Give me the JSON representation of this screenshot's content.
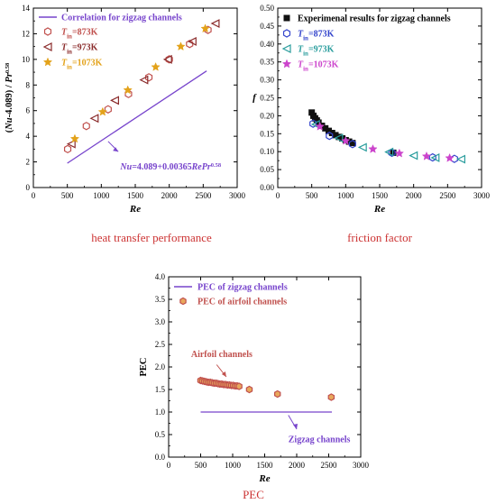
{
  "chart_data": [
    {
      "type": "scatter",
      "caption": "heat transfer performance",
      "xlabel": "Re",
      "ylabel_parts": [
        "(",
        "Nu",
        "-4.089) / ",
        "Pr",
        "0.58"
      ],
      "xlim": [
        0,
        3000
      ],
      "ylim": [
        0,
        14
      ],
      "xticks": [
        0,
        500,
        1000,
        1500,
        2000,
        2500,
        3000
      ],
      "yticks": [
        0,
        2,
        4,
        6,
        8,
        10,
        12,
        14
      ],
      "grid": false,
      "legend_position": "top-left",
      "correlation": {
        "name": "Correlation for zigzag channels",
        "color": "#7744cc",
        "x": [
          500,
          2550
        ],
        "y": [
          1.9,
          9.1
        ],
        "annotation_parts": [
          "Nu",
          "=4.089+0.00365",
          "RePr",
          "0.58"
        ],
        "annotation_color": "#7744cc"
      },
      "series": [
        {
          "name_parts": [
            "T",
            "in",
            "=873K"
          ],
          "marker": "hexagon-open",
          "color": "#c0504d",
          "x": [
            505,
            780,
            1100,
            1400,
            1700,
            2000,
            2300,
            2570
          ],
          "y": [
            3.0,
            4.8,
            6.1,
            7.3,
            8.6,
            10.0,
            11.2,
            12.3
          ]
        },
        {
          "name_parts": [
            "T",
            "in",
            "=973K"
          ],
          "marker": "triangle-left-open",
          "color": "#8b2c2c",
          "x": [
            560,
            900,
            1200,
            1630,
            1980,
            2340,
            2680
          ],
          "y": [
            3.4,
            5.4,
            6.8,
            8.4,
            10.0,
            11.4,
            12.8
          ]
        },
        {
          "name_parts": [
            "T",
            "in",
            "=1073K"
          ],
          "marker": "star",
          "color": "#e3a21a",
          "x": [
            610,
            1020,
            1390,
            1800,
            2170,
            2530
          ],
          "y": [
            3.8,
            5.9,
            7.6,
            9.4,
            11.0,
            12.4
          ]
        }
      ]
    },
    {
      "type": "scatter",
      "caption": "friction factor",
      "xlabel": "Re",
      "ylabel": "f",
      "xlim": [
        0,
        3000
      ],
      "ylim": [
        0,
        0.5
      ],
      "xticks": [
        0,
        500,
        1000,
        1500,
        2000,
        2500,
        3000
      ],
      "yticks": [
        0.0,
        0.05,
        0.1,
        0.15,
        0.2,
        0.25,
        0.3,
        0.35,
        0.4,
        0.45,
        0.5
      ],
      "grid": false,
      "legend_position": "top-right",
      "series": [
        {
          "name": "Experimenal results for zigzag channels",
          "marker": "square-filled",
          "color": "#111111",
          "x": [
            500,
            525,
            550,
            575,
            600,
            650,
            700,
            750,
            800,
            850,
            900,
            950,
            1000,
            1050,
            1100,
            1700
          ],
          "y": [
            0.209,
            0.2,
            0.193,
            0.187,
            0.181,
            0.172,
            0.165,
            0.158,
            0.152,
            0.146,
            0.141,
            0.137,
            0.132,
            0.128,
            0.124,
            0.097
          ]
        },
        {
          "name_parts": [
            "T",
            "in",
            "=873K"
          ],
          "marker": "hexagon-open",
          "color": "#3344cc",
          "x": [
            520,
            760,
            1100,
            1680,
            2280,
            2600
          ],
          "y": [
            0.178,
            0.144,
            0.121,
            0.097,
            0.084,
            0.08
          ]
        },
        {
          "name_parts": [
            "T",
            "in",
            "=973K"
          ],
          "marker": "triangle-left-open",
          "color": "#2a9d9d",
          "x": [
            560,
            900,
            1250,
            1640,
            2000,
            2320,
            2700
          ],
          "y": [
            0.176,
            0.138,
            0.112,
            0.099,
            0.089,
            0.083,
            0.079
          ]
        },
        {
          "name_parts": [
            "T",
            "in",
            "=1073K"
          ],
          "marker": "star",
          "color": "#cc44cc",
          "x": [
            620,
            1000,
            1400,
            1790,
            2190,
            2530
          ],
          "y": [
            0.17,
            0.13,
            0.107,
            0.095,
            0.087,
            0.082
          ]
        }
      ]
    },
    {
      "type": "scatter",
      "caption": "PEC",
      "xlabel": "Re",
      "ylabel": "PEC",
      "xlim": [
        0,
        3000
      ],
      "ylim": [
        0,
        4.0
      ],
      "xticks": [
        0,
        500,
        1000,
        1500,
        2000,
        2500,
        3000
      ],
      "yticks": [
        0.0,
        0.5,
        1.0,
        1.5,
        2.0,
        2.5,
        3.0,
        3.5,
        4.0
      ],
      "grid": false,
      "legend_position": "top-left",
      "zigzag_line": {
        "name": "PEC of zigzag channels",
        "color": "#7744cc",
        "x": [
          500,
          2550
        ],
        "y": [
          1.0,
          1.0
        ],
        "annotation": "Zigzag channels",
        "annotation_color": "#7744cc"
      },
      "series": [
        {
          "name": "PEC of airfoil channels",
          "marker": "hexagon-open",
          "color": "#c0504d",
          "fill": "#e8a85c",
          "x": [
            500,
            530,
            560,
            590,
            620,
            650,
            680,
            710,
            740,
            770,
            800,
            830,
            860,
            890,
            920,
            950,
            980,
            1010,
            1040,
            1070,
            1100,
            1260,
            1700,
            2540
          ],
          "y": [
            1.7,
            1.69,
            1.68,
            1.67,
            1.66,
            1.66,
            1.65,
            1.64,
            1.64,
            1.63,
            1.62,
            1.62,
            1.61,
            1.61,
            1.6,
            1.6,
            1.59,
            1.59,
            1.58,
            1.58,
            1.57,
            1.5,
            1.4,
            1.33
          ]
        }
      ],
      "annotation": "Airfoil channels",
      "annotation_color": "#c0504d"
    }
  ]
}
